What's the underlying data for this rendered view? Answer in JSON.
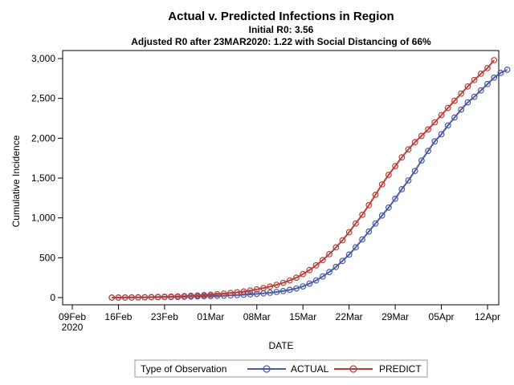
{
  "chart_data": {
    "type": "line",
    "title": "Actual v. Predicted Infections in Region",
    "subtitles": [
      "Initial R0: 3.56",
      "Adjusted R0 after 23MAR2020: 1.22 with Social Distancing of 66%"
    ],
    "xlabel": "DATE",
    "ylabel": "Cumulative Incidence",
    "x_start": "2020-02-15",
    "xlim": [
      "2020-02-09",
      "2020-04-12"
    ],
    "ylim": [
      0,
      3000
    ],
    "x_ticks": [
      {
        "date": "2020-02-09",
        "label": "09Feb",
        "label2": "2020"
      },
      {
        "date": "2020-02-16",
        "label": "16Feb"
      },
      {
        "date": "2020-02-23",
        "label": "23Feb"
      },
      {
        "date": "2020-03-01",
        "label": "01Mar"
      },
      {
        "date": "2020-03-08",
        "label": "08Mar"
      },
      {
        "date": "2020-03-15",
        "label": "15Mar"
      },
      {
        "date": "2020-03-22",
        "label": "22Mar"
      },
      {
        "date": "2020-03-29",
        "label": "29Mar"
      },
      {
        "date": "2020-04-05",
        "label": "05Apr"
      },
      {
        "date": "2020-04-12",
        "label": "12Apr"
      }
    ],
    "y_ticks": [
      {
        "value": 0,
        "label": "0"
      },
      {
        "value": 500,
        "label": "500"
      },
      {
        "value": 1000,
        "label": "1,000"
      },
      {
        "value": 1500,
        "label": "1,500"
      },
      {
        "value": 2000,
        "label": "2,000"
      },
      {
        "value": 2500,
        "label": "2,500"
      },
      {
        "value": 3000,
        "label": "3,000"
      }
    ],
    "legend": {
      "title": "Type of Observation",
      "position": "bottom"
    },
    "series": [
      {
        "name": "ACTUAL",
        "color": "#4A5AA8",
        "values": [
          0,
          0,
          1,
          1,
          2,
          3,
          4,
          5,
          6,
          7,
          8,
          10,
          12,
          14,
          16,
          18,
          21,
          24,
          27,
          31,
          35,
          40,
          46,
          52,
          60,
          70,
          82,
          97,
          115,
          140,
          175,
          215,
          265,
          320,
          385,
          460,
          540,
          630,
          730,
          830,
          930,
          1030,
          1130,
          1240,
          1360,
          1470,
          1590,
          1720,
          1840,
          1960,
          2050,
          2160,
          2260,
          2360,
          2450,
          2520,
          2600,
          2680,
          2760,
          2820,
          2860
        ]
      },
      {
        "name": "PREDICT",
        "color": "#B8403A",
        "values": [
          0,
          1,
          1,
          2,
          3,
          4,
          6,
          8,
          10,
          12,
          15,
          18,
          22,
          26,
          31,
          36,
          42,
          49,
          57,
          66,
          77,
          89,
          103,
          120,
          138,
          160,
          185,
          215,
          250,
          295,
          345,
          405,
          470,
          545,
          630,
          720,
          820,
          930,
          1040,
          1160,
          1290,
          1420,
          1540,
          1650,
          1760,
          1860,
          1950,
          2030,
          2110,
          2200,
          2290,
          2380,
          2470,
          2560,
          2650,
          2730,
          2810,
          2880,
          2980
        ]
      }
    ]
  }
}
